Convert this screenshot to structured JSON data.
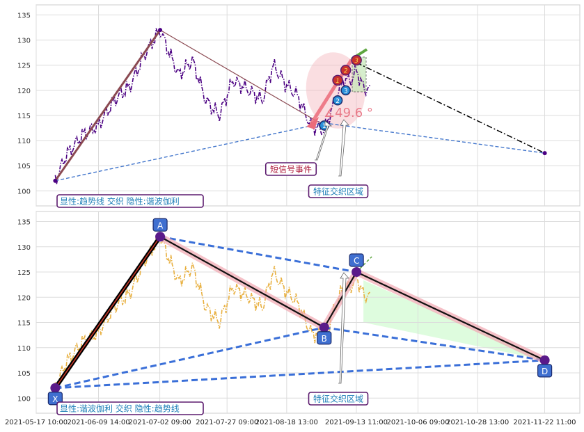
{
  "chart_data": [
    {
      "type": "line",
      "panel": "top",
      "ylim": [
        97,
        137
      ],
      "yticks": [
        100,
        105,
        110,
        115,
        120,
        125,
        130,
        135
      ],
      "grid": true,
      "price_series": {
        "color": "#4b0082",
        "style": "dash-dot",
        "x": [
          "2021-05-24",
          "2021-05-28",
          "2021-06-03",
          "2021-06-09",
          "2021-06-15",
          "2021-06-21",
          "2021-06-26",
          "2021-07-02",
          "2021-07-05",
          "2021-07-09",
          "2021-07-14",
          "2021-07-19",
          "2021-07-24",
          "2021-07-29",
          "2021-08-04",
          "2021-08-09",
          "2021-08-13",
          "2021-08-18",
          "2021-08-22",
          "2021-08-27",
          "2021-09-01",
          "2021-09-05",
          "2021-09-08",
          "2021-09-11",
          "2021-09-13",
          "2021-09-16",
          "2021-09-18"
        ],
        "y": [
          102,
          107,
          111,
          113,
          118,
          121,
          127,
          132,
          128,
          123,
          126,
          118,
          115,
          122,
          120,
          118,
          125,
          121,
          119,
          113,
          112,
          118,
          122,
          122,
          124,
          120,
          121
        ]
      },
      "trendlines": [
        {
          "from": [
            "2021-05-24",
            102
          ],
          "to": [
            "2021-07-02",
            132
          ],
          "color": "#8b4a52"
        },
        {
          "from": [
            "2021-07-02",
            132
          ],
          "to": [
            "2021-09-01",
            113
          ],
          "color": "#8b4a52"
        },
        {
          "from": [
            "2021-05-24",
            102
          ],
          "to": [
            "2021-09-01",
            113.5
          ],
          "color": "#4477cc",
          "style": "dashed"
        },
        {
          "from": [
            "2021-09-01",
            113.5
          ],
          "to": [
            "2021-11-22",
            107.5
          ],
          "color": "#4477cc",
          "style": "dashed"
        },
        {
          "from": [
            "2021-09-13",
            125.5
          ],
          "to": [
            "2021-11-22",
            107.5
          ],
          "color": "#000000",
          "style": "dash-dot"
        }
      ],
      "numbered_points_blue": [
        {
          "label": "1",
          "x": "2021-09-01",
          "y": 113
        },
        {
          "label": "2",
          "x": "2021-09-06",
          "y": 118
        },
        {
          "label": "3",
          "x": "2021-09-09",
          "y": 120
        }
      ],
      "numbered_points_red": [
        {
          "label": "1",
          "x": "2021-09-06",
          "y": 122
        },
        {
          "label": "2",
          "x": "2021-09-09",
          "y": 124
        },
        {
          "label": "3",
          "x": "2021-09-13",
          "y": 126
        }
      ],
      "angle_label": "∡49.6 °",
      "annotations": [
        {
          "text": "短信号事件",
          "color": "#b02040",
          "border": "#5b1a6e"
        },
        {
          "text": "特征交织区域",
          "color": "#1e7fb8",
          "border": "#5b1a6e"
        }
      ],
      "legend_text": "显性:趋势线 交织 隐性:谐波伽利"
    },
    {
      "type": "line",
      "panel": "bottom",
      "ylim": [
        97,
        137
      ],
      "yticks": [
        100,
        105,
        110,
        115,
        120,
        125,
        130,
        135
      ],
      "xticks": [
        "2021-05-17 10:00",
        "2021-06-09 14:00",
        "2021-07-02 09:00",
        "2021-07-27 09:00",
        "2021-08-18 13:00",
        "2021-09-13 11:00",
        "2021-10-06 09:00",
        "2021-10-28 13:00",
        "2021-11-22 11:00"
      ],
      "grid": true,
      "price_series": {
        "color": "#e8b040",
        "style": "dash-dot"
      },
      "pattern_points": [
        {
          "label": "X",
          "x": "2021-05-24",
          "y": 102
        },
        {
          "label": "A",
          "x": "2021-07-02",
          "y": 132
        },
        {
          "label": "B",
          "x": "2021-09-01",
          "y": 114
        },
        {
          "label": "C",
          "x": "2021-09-13",
          "y": 125
        },
        {
          "label": "D",
          "x": "2021-11-22",
          "y": 107.5
        }
      ],
      "annotations": [
        {
          "text": "特征交织区域",
          "color": "#1e7fb8",
          "border": "#5b1a6e"
        }
      ],
      "legend_text": "显性:谐波伽利 交织 隐性:趋势线"
    }
  ]
}
